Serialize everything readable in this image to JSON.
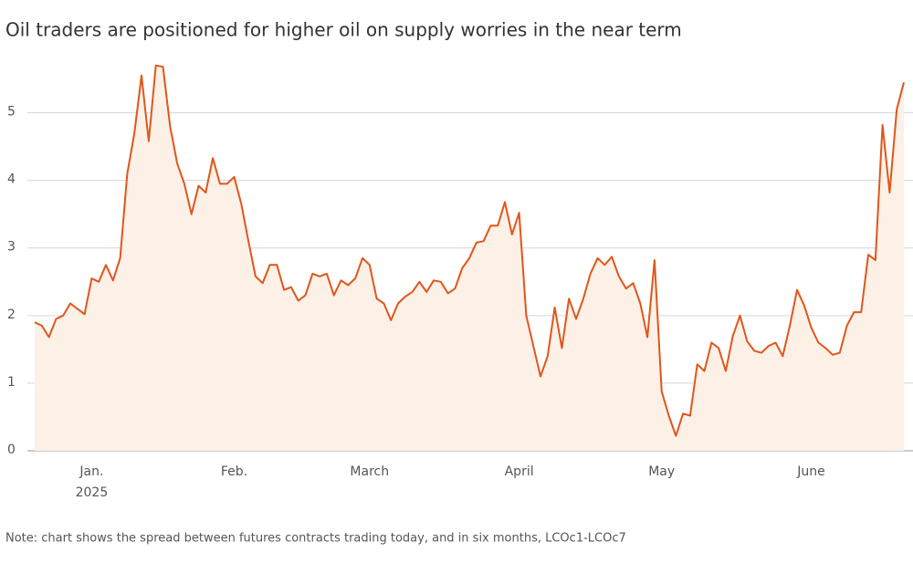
{
  "chart_data": {
    "type": "line",
    "title": "Oil traders are positioned for higher oil on supply worries in the near term",
    "note": "Note: chart shows the spread between futures contracts trading today, and in six months, LCOc1-LCOc7",
    "color": "#e0561c",
    "area_color": "#fdf0e6",
    "grid": true,
    "categories": [
      null,
      null,
      null,
      null,
      null,
      null,
      null,
      null,
      "Jan.\n2025",
      null,
      null,
      null,
      null,
      null,
      null,
      null,
      null,
      null,
      null,
      null,
      null,
      null,
      null,
      null,
      null,
      null,
      null,
      null,
      "Feb.",
      null,
      null,
      null,
      null,
      null,
      null,
      null,
      null,
      null,
      null,
      null,
      null,
      null,
      null,
      null,
      null,
      null,
      null,
      "March",
      null,
      null,
      null,
      null,
      null,
      null,
      null,
      null,
      null,
      null,
      null,
      null,
      null,
      null,
      null,
      null,
      null,
      null,
      null,
      null,
      "April",
      null,
      null,
      null,
      null,
      null,
      null,
      null,
      null,
      null,
      null,
      null,
      null,
      null,
      null,
      null,
      null,
      null,
      null,
      null,
      "May",
      null,
      null,
      null,
      null,
      null,
      null,
      null,
      null,
      null,
      null,
      null,
      null,
      null,
      null,
      null,
      null,
      null,
      null,
      null,
      null,
      "June",
      null,
      null,
      null,
      null,
      null,
      null,
      null,
      null,
      null,
      null,
      null,
      null,
      null
    ],
    "values": [
      1.9,
      1.85,
      1.68,
      1.95,
      2.0,
      2.18,
      2.1,
      2.02,
      2.55,
      2.5,
      2.75,
      2.52,
      2.85,
      4.1,
      4.7,
      5.55,
      4.58,
      5.7,
      5.68,
      4.8,
      4.25,
      3.95,
      3.5,
      3.92,
      3.82,
      4.33,
      3.95,
      3.95,
      4.05,
      3.65,
      3.1,
      2.58,
      2.48,
      2.75,
      2.75,
      2.38,
      2.42,
      2.22,
      2.3,
      2.62,
      2.58,
      2.62,
      2.3,
      2.52,
      2.45,
      2.55,
      2.85,
      2.75,
      2.25,
      2.18,
      1.93,
      2.18,
      2.28,
      2.35,
      2.5,
      2.35,
      2.52,
      2.5,
      2.33,
      2.4,
      2.7,
      2.85,
      3.08,
      3.1,
      3.33,
      3.33,
      3.68,
      3.2,
      3.52,
      2.0,
      1.55,
      1.1,
      1.4,
      2.12,
      1.52,
      2.25,
      1.95,
      2.25,
      2.62,
      2.85,
      2.75,
      2.87,
      2.58,
      2.4,
      2.48,
      2.18,
      1.68,
      2.82,
      0.88,
      0.52,
      0.22,
      0.55,
      0.52,
      1.28,
      1.18,
      1.6,
      1.52,
      1.18,
      1.7,
      2.0,
      1.62,
      1.48,
      1.45,
      1.55,
      1.6,
      1.4,
      1.85,
      2.38,
      2.15,
      1.82,
      1.6,
      1.52,
      1.42,
      1.45,
      1.85,
      2.05,
      2.05,
      2.9,
      2.82,
      4.82,
      3.82,
      5.05,
      5.45
    ],
    "ylim": [
      0,
      5.75
    ],
    "yticks": [
      0,
      1,
      2,
      3,
      4,
      5
    ]
  }
}
